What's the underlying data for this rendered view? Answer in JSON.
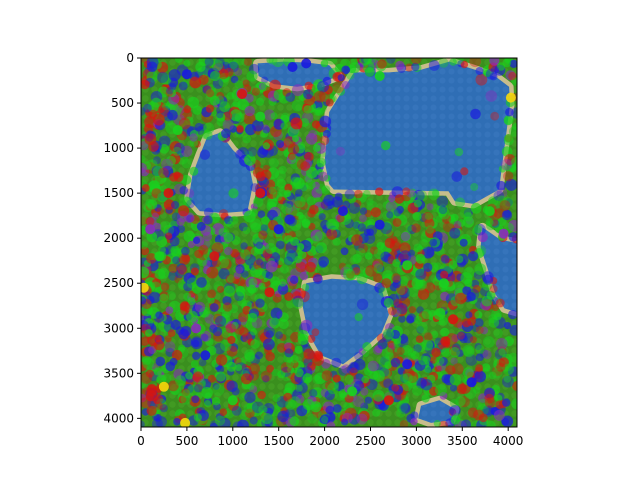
{
  "chart_data": {
    "type": "heatmap",
    "title": "",
    "xlabel": "",
    "ylabel": "",
    "xlim": [
      0,
      4096
    ],
    "ylim": [
      4096,
      0
    ],
    "y_inverted": true,
    "x_ticks": [
      0,
      500,
      1000,
      1500,
      2000,
      2500,
      3000,
      3500,
      4000
    ],
    "y_ticks": [
      0,
      500,
      1000,
      1500,
      2000,
      2500,
      3000,
      3500,
      4000
    ],
    "grid": false,
    "legend": "none",
    "background_colors": {
      "water": "#2f6eb5",
      "sand": "#c8bd8c",
      "grass": "#3a8f1e"
    },
    "overlay_point_colors": {
      "green": "#19d11e",
      "red": "#d9140f",
      "blue": "#1a1ae0",
      "purple": "#8a2bbf",
      "yellow": "#f5d90a"
    },
    "water_regions": [
      {
        "name": "top-right lake",
        "polygon": [
          [
            1270,
            60
          ],
          [
            1560,
            40
          ],
          [
            1800,
            50
          ],
          [
            2050,
            80
          ],
          [
            2150,
            200
          ],
          [
            1950,
            280
          ],
          [
            1700,
            320
          ],
          [
            1450,
            290
          ],
          [
            1280,
            200
          ]
        ]
      },
      {
        "name": "upper-right bay",
        "polygon": [
          [
            2320,
            160
          ],
          [
            2700,
            160
          ],
          [
            3050,
            130
          ],
          [
            3360,
            40
          ],
          [
            3640,
            130
          ],
          [
            3880,
            220
          ],
          [
            4010,
            320
          ],
          [
            4020,
            520
          ],
          [
            3900,
            1460
          ],
          [
            3620,
            1620
          ],
          [
            3420,
            1590
          ],
          [
            3350,
            1480
          ],
          [
            2100,
            1460
          ],
          [
            2050,
            1400
          ],
          [
            2000,
            1150
          ],
          [
            2050,
            600
          ]
        ]
      },
      {
        "name": "left inlet",
        "polygon": [
          [
            720,
            880
          ],
          [
            860,
            830
          ],
          [
            1000,
            1020
          ],
          [
            1180,
            1200
          ],
          [
            1220,
            1400
          ],
          [
            1160,
            1700
          ],
          [
            900,
            1720
          ],
          [
            640,
            1700
          ],
          [
            520,
            1560
          ],
          [
            560,
            1300
          ],
          [
            640,
            1080
          ]
        ]
      },
      {
        "name": "right edge channel",
        "polygon": [
          [
            3720,
            1880
          ],
          [
            3920,
            2020
          ],
          [
            4096,
            2050
          ],
          [
            4096,
            2820
          ],
          [
            3960,
            2780
          ],
          [
            3860,
            2620
          ],
          [
            3780,
            2350
          ],
          [
            3700,
            2100
          ]
        ]
      },
      {
        "name": "central pond",
        "polygon": [
          [
            1800,
            2500
          ],
          [
            2080,
            2450
          ],
          [
            2380,
            2470
          ],
          [
            2620,
            2560
          ],
          [
            2700,
            2850
          ],
          [
            2620,
            3050
          ],
          [
            2400,
            3250
          ],
          [
            2200,
            3400
          ],
          [
            1960,
            3300
          ],
          [
            1820,
            3050
          ],
          [
            1760,
            2750
          ]
        ]
      },
      {
        "name": "bottom-right pool",
        "polygon": [
          [
            3050,
            3860
          ],
          [
            3250,
            3800
          ],
          [
            3420,
            3900
          ],
          [
            3380,
            4020
          ],
          [
            3160,
            4050
          ],
          [
            3020,
            4000
          ]
        ]
      }
    ],
    "points": [
      {
        "x": 4030,
        "y": 440,
        "color": "yellow"
      },
      {
        "x": 30,
        "y": 2550,
        "color": "yellow"
      },
      {
        "x": 250,
        "y": 3650,
        "color": "yellow"
      },
      {
        "x": 480,
        "y": 4050,
        "color": "yellow"
      },
      {
        "x": 500,
        "y": 180,
        "color": "blue"
      },
      {
        "x": 1650,
        "y": 100,
        "color": "blue"
      },
      {
        "x": 1800,
        "y": 60,
        "color": "blue"
      },
      {
        "x": 2200,
        "y": 1700,
        "color": "blue"
      },
      {
        "x": 2600,
        "y": 1850,
        "color": "blue"
      },
      {
        "x": 1500,
        "y": 1900,
        "color": "blue"
      },
      {
        "x": 2900,
        "y": 3400,
        "color": "blue"
      },
      {
        "x": 700,
        "y": 3300,
        "color": "blue"
      },
      {
        "x": 3600,
        "y": 3600,
        "color": "blue"
      },
      {
        "x": 200,
        "y": 2200,
        "color": "green"
      },
      {
        "x": 400,
        "y": 800,
        "color": "green"
      },
      {
        "x": 1300,
        "y": 650,
        "color": "green"
      },
      {
        "x": 2600,
        "y": 200,
        "color": "green"
      },
      {
        "x": 2900,
        "y": 2300,
        "color": "green"
      },
      {
        "x": 3300,
        "y": 2500,
        "color": "green"
      },
      {
        "x": 1000,
        "y": 3800,
        "color": "green"
      },
      {
        "x": 3800,
        "y": 1700,
        "color": "green"
      },
      {
        "x": 2300,
        "y": 3700,
        "color": "green"
      },
      {
        "x": 800,
        "y": 2200,
        "color": "red"
      },
      {
        "x": 1400,
        "y": 2600,
        "color": "red"
      },
      {
        "x": 1100,
        "y": 400,
        "color": "red"
      },
      {
        "x": 300,
        "y": 1500,
        "color": "red"
      },
      {
        "x": 1300,
        "y": 1500,
        "color": "red"
      },
      {
        "x": 2700,
        "y": 3800,
        "color": "red"
      },
      {
        "x": 3400,
        "y": 2900,
        "color": "red"
      },
      {
        "x": 600,
        "y": 3000,
        "color": "purple"
      },
      {
        "x": 100,
        "y": 1900,
        "color": "purple"
      },
      {
        "x": 3950,
        "y": 1950,
        "color": "purple"
      }
    ]
  }
}
